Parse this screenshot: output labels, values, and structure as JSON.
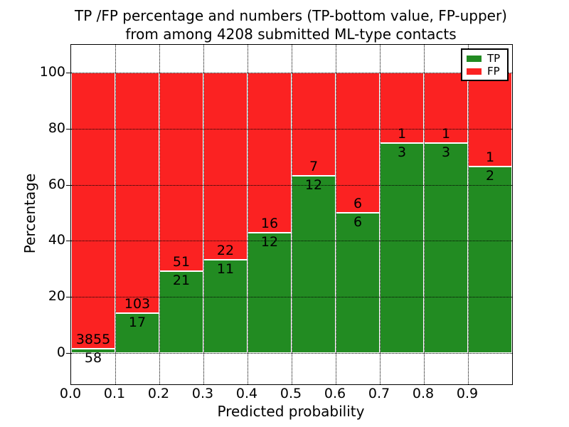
{
  "chart_data": {
    "type": "bar",
    "stacked": true,
    "units": "percent",
    "title": "TP /FP percentage and numbers (TP-bottom value, FP-upper)",
    "subtitle": "from among 4208 submitted ML-type contacts",
    "xlabel": "Predicted probability",
    "ylabel": "Percentage",
    "total_contacts": 4208,
    "bin_edges": [
      0.0,
      0.1,
      0.2,
      0.3,
      0.4,
      0.5,
      0.6,
      0.7,
      0.8,
      0.9,
      1.0
    ],
    "x_tick_labels": [
      "0.0",
      "0.1",
      "0.2",
      "0.3",
      "0.4",
      "0.5",
      "0.6",
      "0.7",
      "0.8",
      "0.9"
    ],
    "y_ticks": [
      0,
      20,
      40,
      60,
      80,
      100
    ],
    "ylim": [
      -11.2,
      110
    ],
    "xlim": [
      0,
      1
    ],
    "grid": "dotted",
    "bar_edge_color": "#ffffff",
    "series": [
      {
        "name": "TP",
        "color": "#228b22",
        "counts": [
          58,
          17,
          21,
          11,
          12,
          12,
          6,
          3,
          3,
          2
        ],
        "percent": [
          1.48,
          14.17,
          29.17,
          33.33,
          42.86,
          63.16,
          50.0,
          75.0,
          75.0,
          66.67
        ]
      },
      {
        "name": "FP",
        "color": "#fb2222",
        "counts": [
          3855,
          103,
          51,
          22,
          16,
          7,
          6,
          1,
          1,
          1
        ],
        "percent": [
          98.52,
          85.83,
          70.83,
          66.67,
          57.14,
          36.84,
          50.0,
          25.0,
          25.0,
          33.33
        ]
      }
    ],
    "legend": {
      "position": "upper-right",
      "entries": [
        "TP",
        "FP"
      ]
    }
  }
}
